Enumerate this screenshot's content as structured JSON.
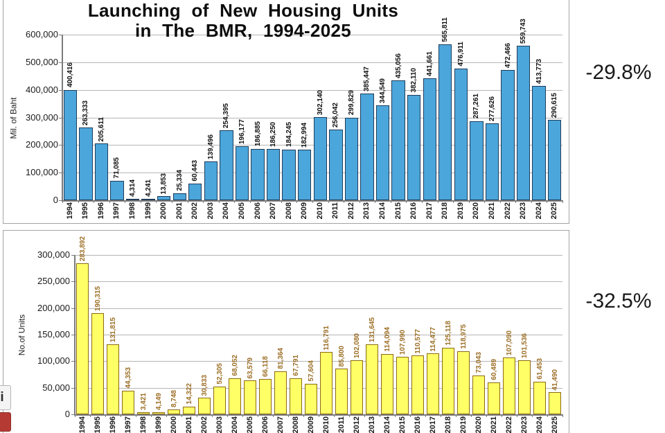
{
  "page": {
    "title_line1": "Launching of New Housing Units",
    "title_line2": "in The BMR, 1994-2025"
  },
  "annotations": {
    "top_change": "-29.8%",
    "bottom_change": "-32.5%"
  },
  "corner_logo": {
    "glyph": "i"
  },
  "chart_data": [
    {
      "type": "bar",
      "title": "Launching of New Housing Units in The BMR, 1994-2025",
      "xlabel": "",
      "ylabel": "Mil. of Baht",
      "ylim": [
        0,
        600000
      ],
      "grid": true,
      "legend": false,
      "ytick_labels": [
        "600,000",
        "500,000",
        "400,000",
        "300,000",
        "200,000",
        "100,000",
        "0"
      ],
      "categories": [
        "1994",
        "1995",
        "1996",
        "1997",
        "1998",
        "1999",
        "2000",
        "2001",
        "2002",
        "2003",
        "2004",
        "2005",
        "2006",
        "2007",
        "2008",
        "2009",
        "2010",
        "2011",
        "2012",
        "2013",
        "2014",
        "2015",
        "2016",
        "2017",
        "2018",
        "2019",
        "2020",
        "2021",
        "2022",
        "2023",
        "2024",
        "2025"
      ],
      "values": [
        400416,
        263333,
        205611,
        71085,
        4314,
        4241,
        13853,
        25334,
        60443,
        139496,
        254395,
        196177,
        186885,
        186250,
        184245,
        182994,
        302140,
        256042,
        299829,
        385447,
        344549,
        435056,
        382110,
        441661,
        565811,
        476911,
        287261,
        277626,
        472466,
        559743,
        413773,
        290615
      ],
      "annotation": "-29.8%",
      "colors": {
        "bar_fill": "#4BA6DB",
        "bar_border": "#1F3C5A",
        "value_label": "#111111"
      }
    },
    {
      "type": "bar",
      "title": "",
      "xlabel": "",
      "ylabel": "No.of Units",
      "ylim": [
        0,
        300000
      ],
      "grid": true,
      "legend": false,
      "ytick_labels": [
        "300,000",
        "250,000",
        "200,000",
        "150,000",
        "100,000",
        "50,000",
        "0"
      ],
      "categories": [
        "1994",
        "1995",
        "1996",
        "1997",
        "1998",
        "1999",
        "2000",
        "2001",
        "2002",
        "2003",
        "2004",
        "2005",
        "2006",
        "2007",
        "2008",
        "2009",
        "2010",
        "2011",
        "2012",
        "2013",
        "2014",
        "2015",
        "2016",
        "2017",
        "2018",
        "2019",
        "2020",
        "2021",
        "2022",
        "2023",
        "2024",
        "2025"
      ],
      "values": [
        283892,
        190315,
        131815,
        44353,
        3421,
        4149,
        8748,
        14322,
        30833,
        52305,
        68052,
        63579,
        66118,
        81364,
        67791,
        57604,
        116791,
        85800,
        102080,
        131645,
        114094,
        107990,
        110577,
        114477,
        125118,
        118975,
        73043,
        60489,
        107090,
        101536,
        61453,
        41490
      ],
      "annotation": "-32.5%",
      "colors": {
        "bar_fill": "#FFFF66",
        "bar_border": "#8B6914",
        "value_label": "#9C6F26"
      }
    }
  ]
}
